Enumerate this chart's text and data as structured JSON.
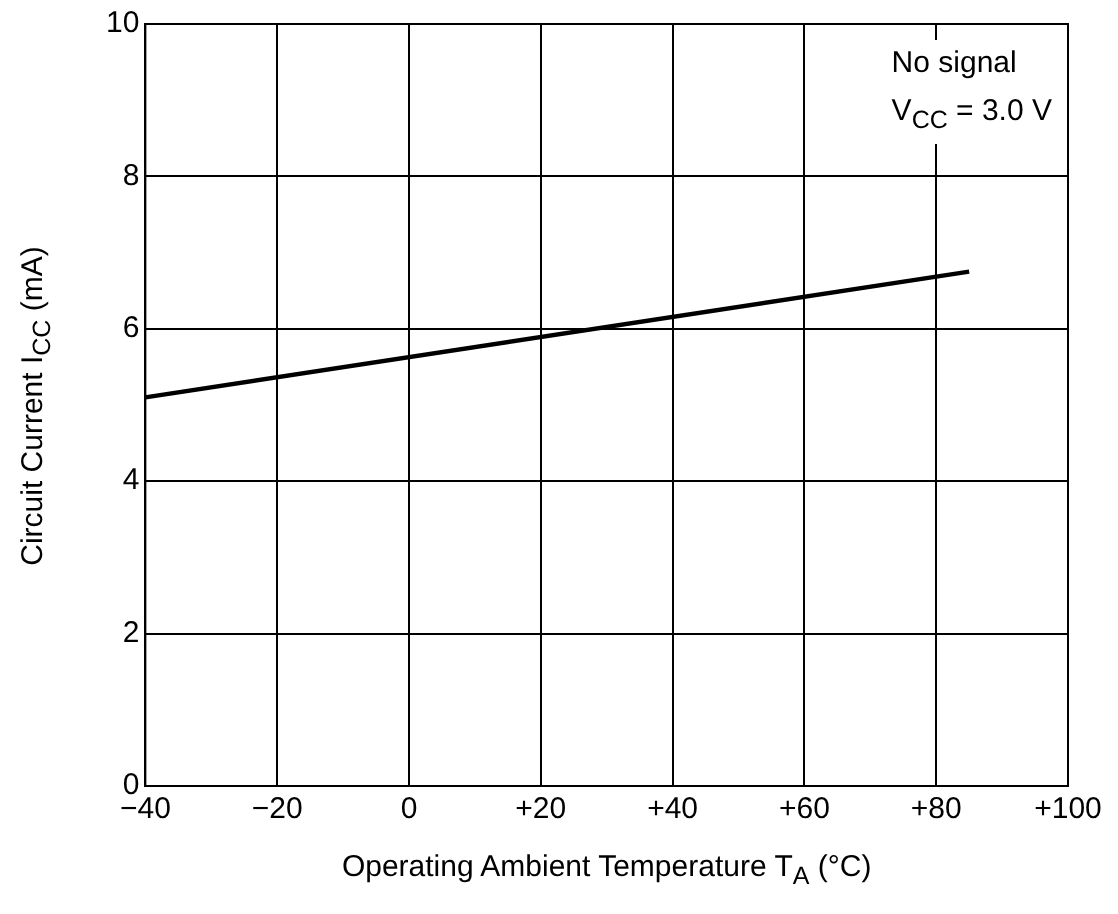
{
  "chart_data": {
    "type": "line",
    "xlabel": "Operating Ambient Temperature  T$_{A}$ (°C)",
    "ylabel": "Circuit Current  I$_{CC}$ (mA)",
    "x": [
      -40,
      85
    ],
    "series": [
      {
        "color": "#000000",
        "values": [
          5.1,
          6.75
        ]
      }
    ],
    "xlim": [
      -40,
      100
    ],
    "xticks": [
      {
        "value": -40,
        "label": "−40"
      },
      {
        "value": -20,
        "label": "−20"
      },
      0,
      {
        "value": 20,
        "label": "+20"
      },
      {
        "value": 40,
        "label": "+40"
      },
      {
        "value": 60,
        "label": "+60"
      },
      {
        "value": 80,
        "label": "+80"
      },
      {
        "value": 100,
        "label": "+100"
      }
    ],
    "ylim": [
      0,
      10
    ],
    "yticks": [
      0,
      2,
      4,
      6,
      8,
      10
    ],
    "grid": true,
    "legend": false,
    "marker": "none",
    "line_style": "solid",
    "annotations": [
      "No signal",
      "V$_{CC}$ = 3.0 V"
    ]
  }
}
